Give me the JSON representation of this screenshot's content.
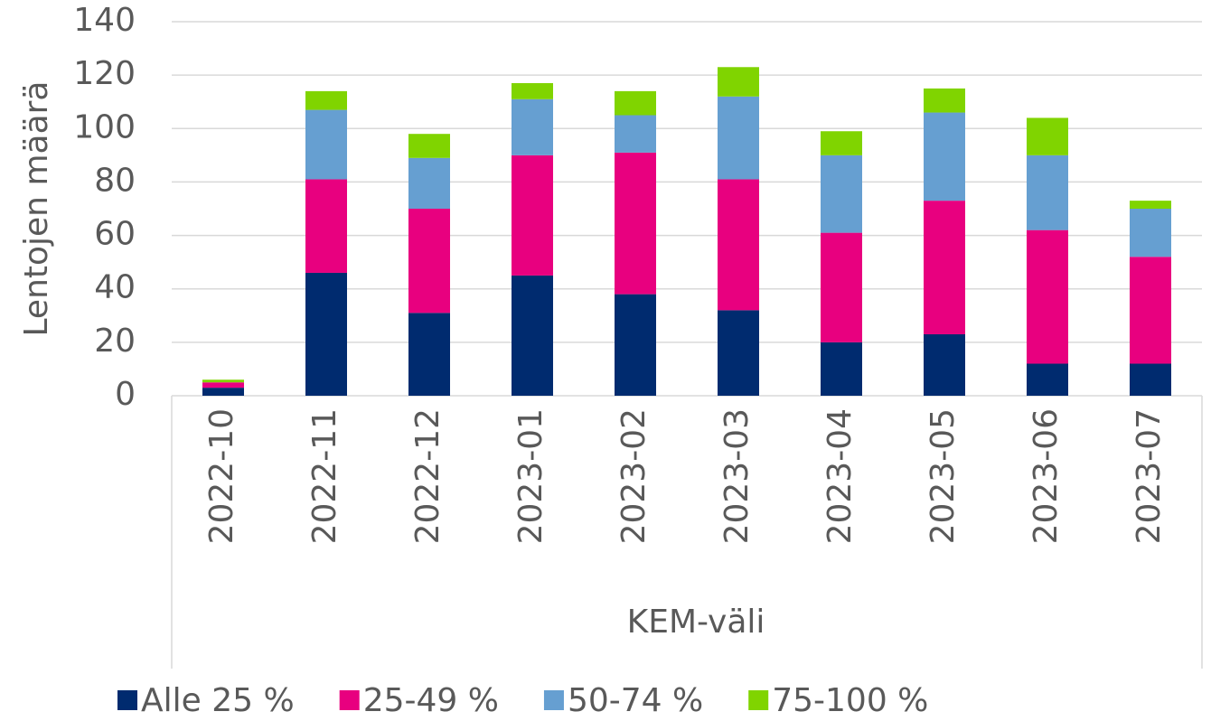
{
  "chart_data": {
    "type": "stacked_bar",
    "x_label": "KEM-väli",
    "y_label": "Lentojen määrä",
    "categories": [
      "2022-10",
      "2022-11",
      "2022-12",
      "2023-01",
      "2023-02",
      "2023-03",
      "2023-04",
      "2023-05",
      "2023-06",
      "2023-07"
    ],
    "series": [
      {
        "name": "Alle 25 %",
        "color": "#002b6f",
        "values": [
          3,
          46,
          31,
          45,
          38,
          32,
          20,
          23,
          12,
          12
        ]
      },
      {
        "name": "25-49 %",
        "color": "#e8007f",
        "values": [
          2,
          35,
          39,
          45,
          53,
          49,
          41,
          50,
          50,
          40
        ]
      },
      {
        "name": "50-74 %",
        "color": "#669fd1",
        "values": [
          0,
          26,
          19,
          21,
          14,
          31,
          29,
          33,
          28,
          18
        ]
      },
      {
        "name": "75-100 %",
        "color": "#80d400",
        "values": [
          1,
          7,
          9,
          6,
          9,
          11,
          9,
          9,
          14,
          3
        ]
      }
    ],
    "ylim": [
      0,
      140
    ],
    "yticks": [
      0,
      20,
      40,
      60,
      80,
      100,
      120,
      140
    ],
    "grid": true,
    "legend": "bottom"
  }
}
